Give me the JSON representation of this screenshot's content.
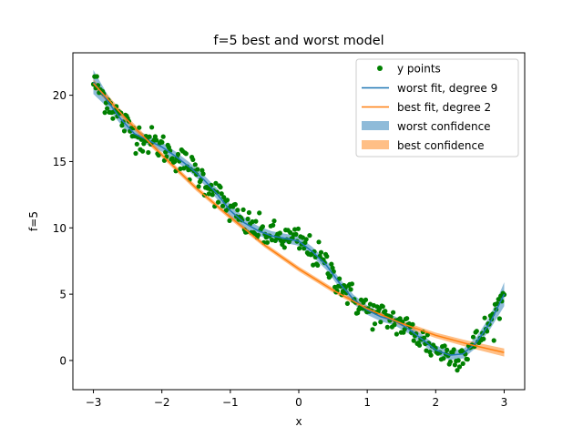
{
  "chart_data": {
    "type": "line",
    "title": "f=5 best and worst model",
    "xlabel": "x",
    "ylabel": "f=5",
    "xlim": [
      -3.3,
      3.3
    ],
    "ylim": [
      -2.2,
      23.2
    ],
    "xticks": [
      -3,
      -2,
      -1,
      0,
      1,
      2,
      3
    ],
    "xtick_labels": [
      "−3",
      "−2",
      "−1",
      "0",
      "1",
      "2",
      "3"
    ],
    "yticks": [
      0,
      5,
      10,
      15,
      20
    ],
    "ytick_labels": [
      "0",
      "5",
      "10",
      "15",
      "20"
    ],
    "grid": false,
    "legend_position": "top-right",
    "legend": [
      {
        "label": "y points",
        "kind": "marker",
        "color": "#008000"
      },
      {
        "label": "worst fit, degree 9",
        "kind": "line",
        "color": "#1f77b4"
      },
      {
        "label": "best fit, degree 2",
        "kind": "line",
        "color": "#ff7f0e"
      },
      {
        "label": "worst confidence",
        "kind": "patch",
        "color": "#1f77b4"
      },
      {
        "label": "best confidence",
        "kind": "patch",
        "color": "#ff7f0e"
      }
    ],
    "series": [
      {
        "name": "worst fit, degree 9",
        "color": "#1f77b4",
        "x": [
          -3.0,
          -2.8,
          -2.6,
          -2.4,
          -2.2,
          -2.0,
          -1.8,
          -1.6,
          -1.4,
          -1.2,
          -1.0,
          -0.8,
          -0.6,
          -0.4,
          -0.2,
          0.0,
          0.2,
          0.4,
          0.6,
          0.8,
          1.0,
          1.2,
          1.4,
          1.6,
          1.8,
          2.0,
          2.2,
          2.4,
          2.6,
          2.8,
          3.0
        ],
        "y": [
          21.0,
          19.6,
          18.2,
          17.1,
          16.6,
          16.1,
          15.4,
          14.6,
          13.7,
          12.6,
          11.3,
          10.4,
          9.8,
          9.4,
          9.2,
          9.0,
          8.2,
          7.2,
          5.8,
          4.6,
          3.8,
          3.3,
          3.0,
          2.4,
          1.6,
          0.8,
          0.4,
          0.5,
          1.4,
          2.9,
          5.0
        ],
        "confidence_halfwidth": [
          0.9,
          0.5,
          0.4,
          0.35,
          0.35,
          0.35,
          0.35,
          0.35,
          0.35,
          0.4,
          0.5,
          0.4,
          0.35,
          0.35,
          0.35,
          0.35,
          0.35,
          0.35,
          0.35,
          0.35,
          0.35,
          0.35,
          0.35,
          0.35,
          0.35,
          0.35,
          0.35,
          0.35,
          0.4,
          0.5,
          0.9
        ]
      },
      {
        "name": "best fit, degree 2",
        "color": "#ff7f0e",
        "x": [
          -3.0,
          -2.5,
          -2.0,
          -1.5,
          -1.0,
          -0.5,
          0.0,
          0.5,
          1.0,
          1.5,
          2.0,
          2.5,
          3.0
        ],
        "y": [
          20.9,
          18.1,
          15.5,
          13.0,
          10.8,
          8.7,
          6.9,
          5.3,
          3.9,
          2.8,
          1.9,
          1.2,
          0.6
        ],
        "confidence_halfwidth": [
          0.3,
          0.25,
          0.2,
          0.2,
          0.18,
          0.18,
          0.18,
          0.18,
          0.18,
          0.2,
          0.2,
          0.25,
          0.3
        ]
      }
    ],
    "scatter": {
      "name": "y points",
      "color": "#008000",
      "count": 360,
      "x_range": [
        -3.0,
        3.0
      ],
      "noise_sd": 0.55
    }
  }
}
